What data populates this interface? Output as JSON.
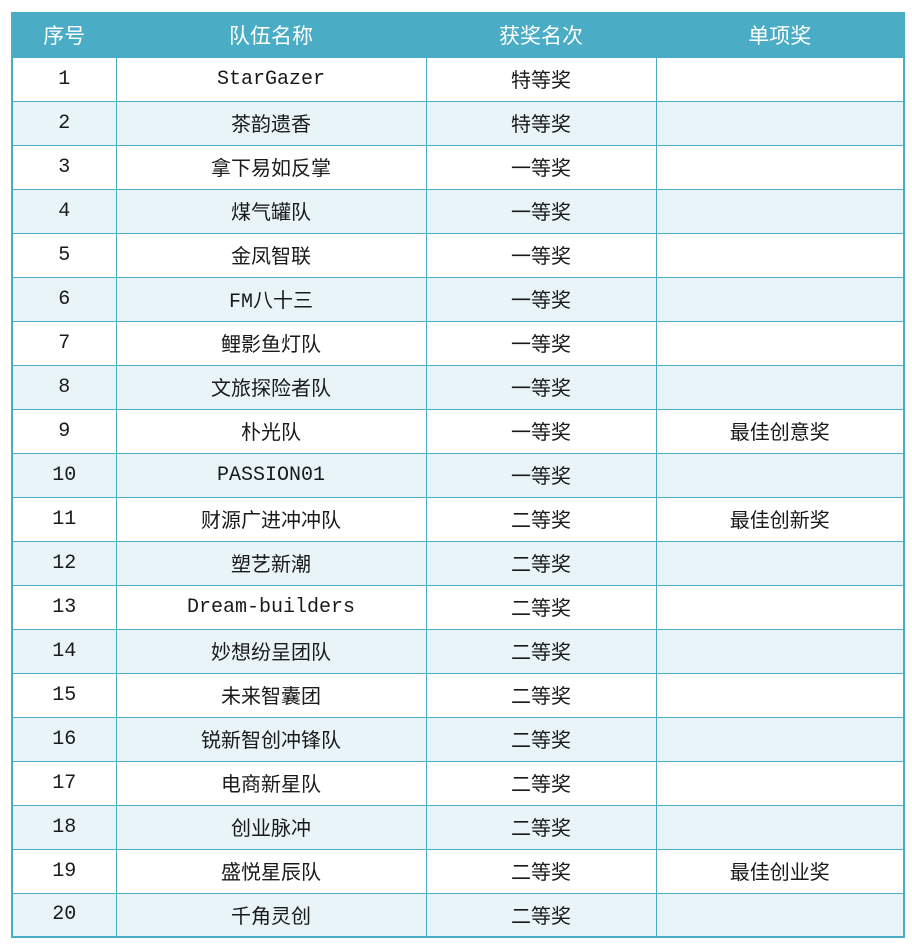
{
  "colors": {
    "header_background": "#4BACC6",
    "header_text": "#FFFFFF",
    "stripe_background": "#E8F4F8",
    "border": "#4BACC6",
    "body_text": "#1A1A1A"
  },
  "table": {
    "headers": [
      "序号",
      "队伍名称",
      "获奖名次",
      "单项奖"
    ],
    "rows": [
      {
        "no": "1",
        "team": "StarGazer",
        "rank": "特等奖",
        "special": ""
      },
      {
        "no": "2",
        "team": "茶韵遗香",
        "rank": "特等奖",
        "special": ""
      },
      {
        "no": "3",
        "team": "拿下易如反掌",
        "rank": "一等奖",
        "special": ""
      },
      {
        "no": "4",
        "team": "煤气罐队",
        "rank": "一等奖",
        "special": ""
      },
      {
        "no": "5",
        "team": "金凤智联",
        "rank": "一等奖",
        "special": ""
      },
      {
        "no": "6",
        "team": "FM八十三",
        "rank": "一等奖",
        "special": ""
      },
      {
        "no": "7",
        "team": "鲤影鱼灯队",
        "rank": "一等奖",
        "special": ""
      },
      {
        "no": "8",
        "team": "文旅探险者队",
        "rank": "一等奖",
        "special": ""
      },
      {
        "no": "9",
        "team": "朴光队",
        "rank": "一等奖",
        "special": "最佳创意奖"
      },
      {
        "no": "10",
        "team": "PASSION01",
        "rank": "一等奖",
        "special": ""
      },
      {
        "no": "11",
        "team": "财源广进冲冲队",
        "rank": "二等奖",
        "special": "最佳创新奖"
      },
      {
        "no": "12",
        "team": "塑艺新潮",
        "rank": "二等奖",
        "special": ""
      },
      {
        "no": "13",
        "team": "Dream-builders",
        "rank": "二等奖",
        "special": ""
      },
      {
        "no": "14",
        "team": "妙想纷呈团队",
        "rank": "二等奖",
        "special": ""
      },
      {
        "no": "15",
        "team": "未来智囊团",
        "rank": "二等奖",
        "special": ""
      },
      {
        "no": "16",
        "team": "锐新智创冲锋队",
        "rank": "二等奖",
        "special": ""
      },
      {
        "no": "17",
        "team": "电商新星队",
        "rank": "二等奖",
        "special": ""
      },
      {
        "no": "18",
        "team": "创业脉冲",
        "rank": "二等奖",
        "special": ""
      },
      {
        "no": "19",
        "team": "盛悦星辰队",
        "rank": "二等奖",
        "special": "最佳创业奖"
      },
      {
        "no": "20",
        "team": "千角灵创",
        "rank": "二等奖",
        "special": ""
      }
    ]
  }
}
